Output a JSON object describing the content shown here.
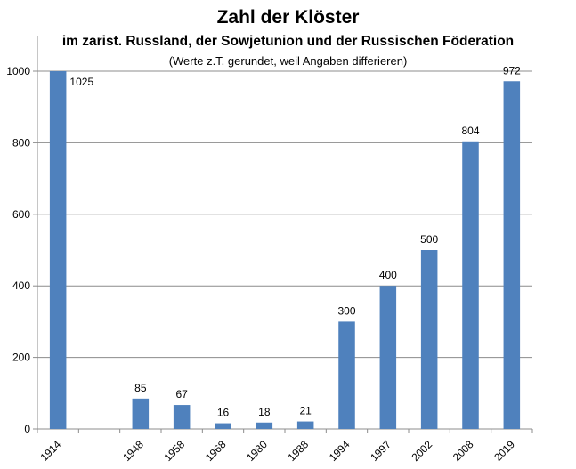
{
  "chart_data": {
    "type": "bar",
    "title": "Zahl der Klöster",
    "subtitle": "im zarist. Russland, der Sowjetunion und der Russischen Föderation",
    "note": "(Werte z.T. gerundet, weil Angaben differieren)",
    "xlabel": "",
    "ylabel": "",
    "categories": [
      "1914",
      "",
      "1948",
      "1958",
      "1968",
      "1980",
      "1988",
      "1994",
      "1997",
      "2002",
      "2008",
      "2019"
    ],
    "values": [
      1025,
      null,
      85,
      67,
      16,
      18,
      21,
      300,
      400,
      500,
      804,
      972
    ],
    "data_labels": [
      "1025",
      "",
      "85",
      "67",
      "16",
      "18",
      "21",
      "300",
      "400",
      "500",
      "804",
      "972"
    ],
    "yticks": [
      "0",
      "200",
      "400",
      "600",
      "800",
      "1000"
    ],
    "ylim": [
      0,
      1000
    ],
    "grid": true,
    "legend": "none",
    "colors": {
      "bar": "#4F81BD",
      "grid": "#8c8c8c",
      "axis": "#8c8c8c",
      "text": "#000000"
    }
  }
}
